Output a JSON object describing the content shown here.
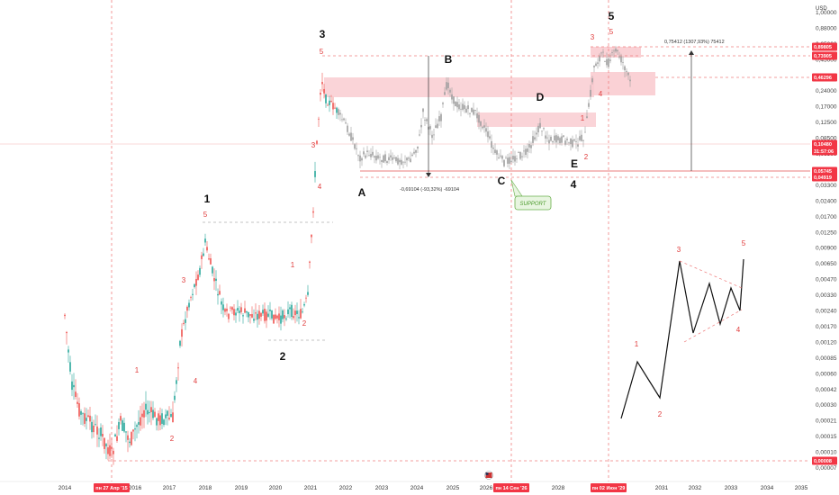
{
  "chart_data": {
    "type": "candlestick",
    "scale": "log",
    "currency": "USD",
    "x_ticks": [
      "2014",
      "2016",
      "2017",
      "2018",
      "2019",
      "2020",
      "2021",
      "2022",
      "2023",
      "2024",
      "2025",
      "2026",
      "2028",
      "2031",
      "2032",
      "2033",
      "2034",
      "2035"
    ],
    "y_ticks": [
      "1,00000",
      "0,88000",
      "0,65000",
      "0,45000",
      "0,33000",
      "0,24000",
      "0,17000",
      "0,12500",
      "0,08500",
      "0,06500",
      "0,04000",
      "0,03300",
      "0,02400",
      "0,01700",
      "0,01250",
      "0,00900",
      "0,00650",
      "0,00470",
      "0,00330",
      "0,00240",
      "0,00170",
      "0,00120",
      "0,00085",
      "0,00060",
      "0,00042",
      "0,00030",
      "0,00021",
      "0,00015",
      "0,00010",
      "0,00007"
    ],
    "price_labels": [
      {
        "text": "0,89805",
        "bg": "#f23645"
      },
      {
        "text": "0,73905",
        "bg": "#f23645"
      },
      {
        "text": "0,46296",
        "bg": "#f23645"
      },
      {
        "text": "0,10480",
        "bg": "#f23645"
      },
      {
        "text": "31:57:06",
        "bg": "#f23645"
      },
      {
        "text": "0,05745",
        "bg": "#f23645"
      },
      {
        "text": "0,04919",
        "bg": "#f23645"
      },
      {
        "text": "0,00008",
        "bg": "#f23645"
      }
    ],
    "date_labels": [
      "пн 27 Апр '15",
      "пн 14 Сен '26",
      "пн 02 Июн '29"
    ],
    "wave_labels_big": [
      "1",
      "2",
      "3",
      "4",
      "5",
      "A",
      "B",
      "C",
      "D",
      "E"
    ],
    "wave_labels_red": [
      "1",
      "2",
      "3",
      "4",
      "5"
    ],
    "measure_labels": {
      "down": "-0,69104 (-93,32%) -69104",
      "up": "0,75412 (1307,93%) 75412"
    },
    "support_label": "SUPPORT",
    "colors": {
      "up": "#26a69a",
      "down": "#ef5350",
      "zone": "#f9c9ce",
      "dashed": "#f08080",
      "wave_red": "#e03b3b"
    }
  }
}
